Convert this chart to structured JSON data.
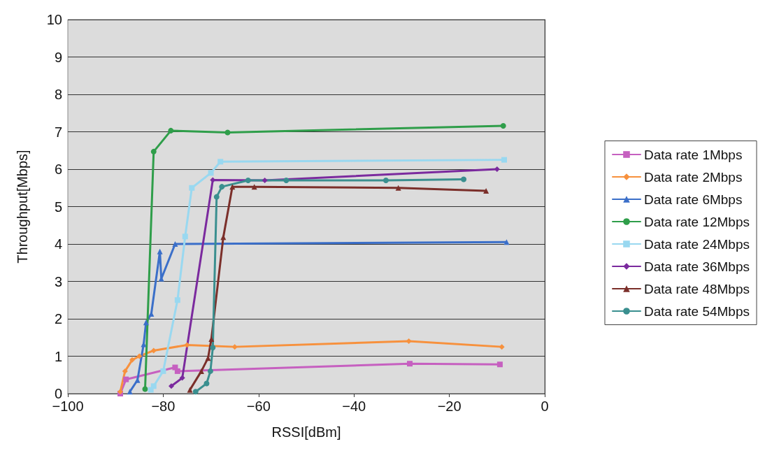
{
  "chart_data": {
    "type": "line",
    "xlabel": "RSSI[dBm]",
    "ylabel": "Throughput[Mbps]",
    "xlim": [
      -100,
      0
    ],
    "xticks": [
      -100,
      -80,
      -60,
      -40,
      -20,
      0
    ],
    "ylim": [
      0,
      10
    ],
    "yticks": [
      0,
      1,
      2,
      3,
      4,
      5,
      6,
      7,
      8,
      9,
      10
    ],
    "grid": "y",
    "legend": "right",
    "line_style": "solid",
    "series": [
      {
        "name": "Data rate 1Mbps",
        "color": "#c660c0",
        "marker": "square",
        "x": [
          -89,
          -87.8,
          -77.5,
          -77,
          -28.3,
          -9.4
        ],
        "values": [
          0,
          0.38,
          0.7,
          0.6,
          0.8,
          0.78
        ]
      },
      {
        "name": "Data rate 2Mbps",
        "color": "#f7913d",
        "marker": "diamond",
        "x": [
          -89,
          -88,
          -86.5,
          -85,
          -82,
          -75,
          -65,
          -28.5,
          -9
        ],
        "values": [
          0.05,
          0.6,
          0.9,
          1.0,
          1.15,
          1.3,
          1.25,
          1.4,
          1.25
        ]
      },
      {
        "name": "Data rate 6Mbps",
        "color": "#3b6fc9",
        "marker": "triangle",
        "x": [
          -87,
          -85.4,
          -84.1,
          -83.6,
          -82.5,
          -80.7,
          -80.4,
          -77.5,
          -8
        ],
        "values": [
          0.05,
          0.36,
          1.32,
          1.9,
          2.13,
          3.8,
          3.07,
          4.0,
          4.05
        ]
      },
      {
        "name": "Data rate 12Mbps",
        "color": "#2f9e4a",
        "marker": "circle",
        "x": [
          -83.8,
          -82,
          -78.4,
          -66.5,
          -8.7
        ],
        "values": [
          0.12,
          6.47,
          7.03,
          6.98,
          7.16
        ]
      },
      {
        "name": "Data rate 24Mbps",
        "color": "#99d8f0",
        "marker": "square",
        "x": [
          -82.6,
          -82,
          -80,
          -77,
          -75.4,
          -74,
          -70,
          -68,
          -8.5
        ],
        "values": [
          0.1,
          0.2,
          0.6,
          2.5,
          4.2,
          5.5,
          5.9,
          6.2,
          6.25
        ]
      },
      {
        "name": "Data rate 36Mbps",
        "color": "#7b2a9e",
        "marker": "diamond",
        "x": [
          -78.3,
          -76,
          -69.6,
          -58.7,
          -10
        ],
        "values": [
          0.2,
          0.42,
          5.71,
          5.7,
          6.0
        ]
      },
      {
        "name": "Data rate 48Mbps",
        "color": "#7b2f2a",
        "marker": "triangle",
        "x": [
          -74.4,
          -72,
          -70.6,
          -69.9,
          -67.4,
          -65.5,
          -60.9,
          -30.7,
          -12.3
        ],
        "values": [
          0.1,
          0.6,
          0.95,
          1.46,
          4.18,
          5.53,
          5.53,
          5.5,
          5.42
        ]
      },
      {
        "name": "Data rate 54Mbps",
        "color": "#3a8f8f",
        "marker": "circle",
        "x": [
          -73.2,
          -70.9,
          -70.1,
          -69.6,
          -68.8,
          -67.7,
          -62.2,
          -54.2,
          -33.3,
          -17
        ],
        "values": [
          0.05,
          0.27,
          0.6,
          1.23,
          5.26,
          5.53,
          5.7,
          5.7,
          5.7,
          5.73
        ]
      }
    ]
  }
}
